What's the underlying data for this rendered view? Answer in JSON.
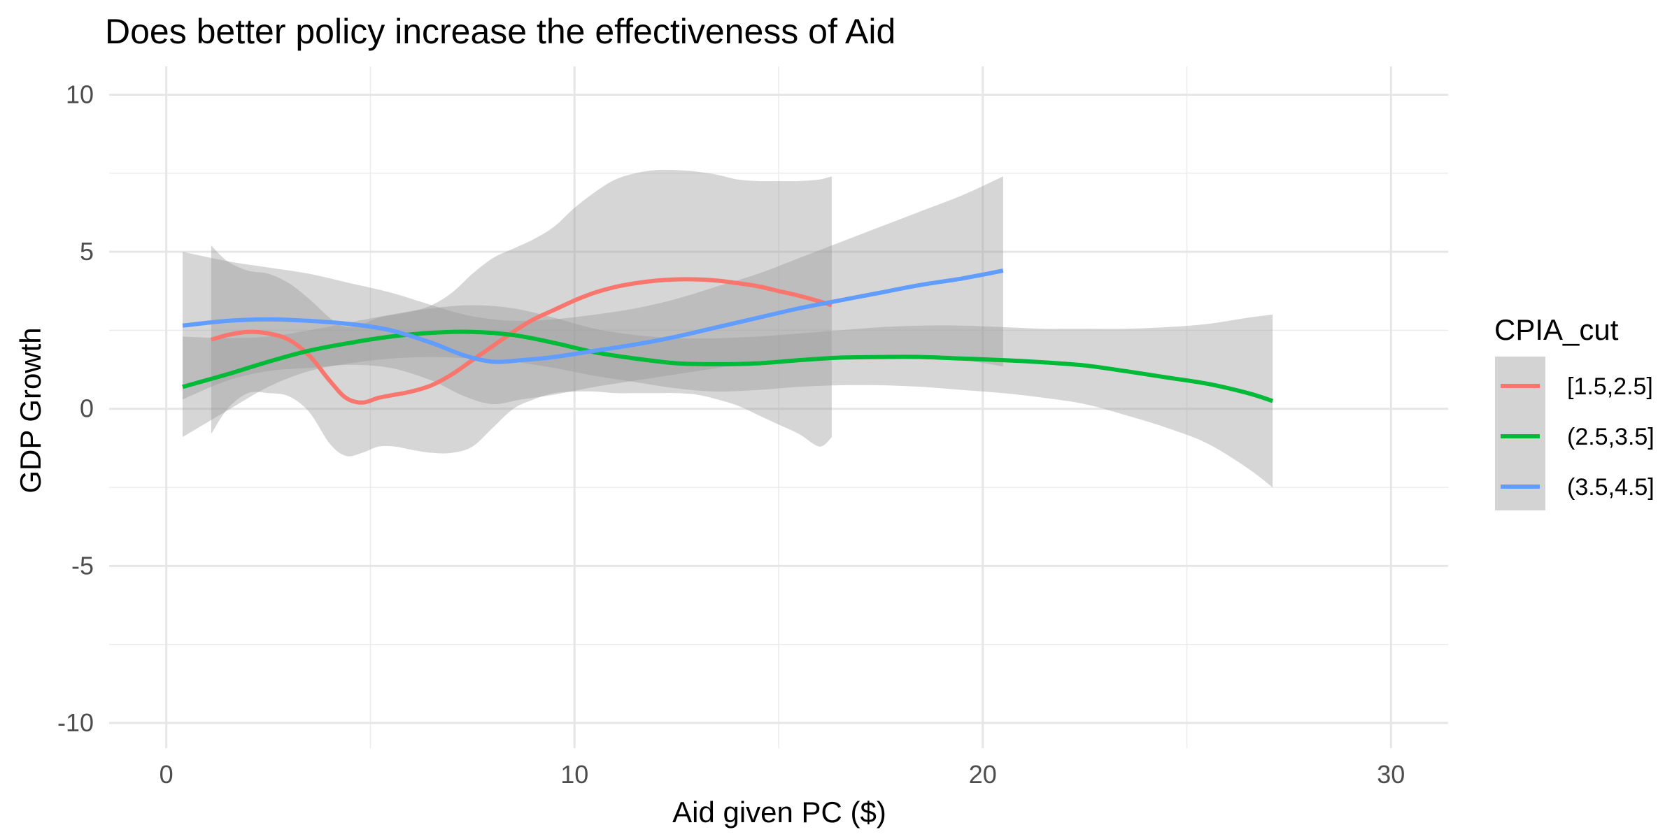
{
  "chart_data": {
    "type": "line",
    "title": "Does better policy increase the effectiveness of Aid",
    "xlabel": "Aid given PC ($)",
    "ylabel": "GDP Growth",
    "xlim": [
      -1.4,
      31.4
    ],
    "ylim": [
      -10.8,
      10.9
    ],
    "x_ticks": [
      0,
      10,
      20,
      30
    ],
    "x_tick_labels": [
      "0",
      "10",
      "20",
      "30"
    ],
    "y_ticks": [
      -10,
      -5,
      0,
      5,
      10
    ],
    "y_tick_labels": [
      "-10",
      "-5",
      "0",
      "5",
      "10"
    ],
    "grid": true,
    "legend": {
      "title": "CPIA_cut",
      "position": "right"
    },
    "series": [
      {
        "name": "[1.5,2.5]",
        "color": "#F8766D",
        "x": [
          1.1,
          1.5,
          2.0,
          2.5,
          3.0,
          3.5,
          4.0,
          4.4,
          4.8,
          5.2,
          5.6,
          6.0,
          6.5,
          7.0,
          7.5,
          8.0,
          8.5,
          9.0,
          9.5,
          10.0,
          10.5,
          11.0,
          11.5,
          12.0,
          12.5,
          13.0,
          13.5,
          14.0,
          14.5,
          15.0,
          15.5,
          16.0,
          16.3
        ],
        "y": [
          2.2,
          2.35,
          2.45,
          2.4,
          2.2,
          1.7,
          0.9,
          0.35,
          0.2,
          0.35,
          0.45,
          0.55,
          0.75,
          1.1,
          1.55,
          2.0,
          2.45,
          2.85,
          3.15,
          3.45,
          3.7,
          3.88,
          4.0,
          4.08,
          4.12,
          4.12,
          4.08,
          4.0,
          3.9,
          3.75,
          3.6,
          3.42,
          3.3
        ],
        "upper": [
          5.2,
          4.7,
          4.4,
          4.3,
          4.0,
          3.5,
          2.9,
          2.6,
          2.7,
          2.9,
          3.0,
          3.1,
          3.3,
          3.7,
          4.3,
          4.8,
          5.1,
          5.4,
          5.8,
          6.4,
          6.9,
          7.3,
          7.5,
          7.6,
          7.6,
          7.55,
          7.45,
          7.3,
          7.25,
          7.25,
          7.25,
          7.3,
          7.4
        ],
        "lower": [
          -0.8,
          0.0,
          0.5,
          0.5,
          0.4,
          -0.1,
          -1.1,
          -1.5,
          -1.4,
          -1.2,
          -1.2,
          -1.3,
          -1.4,
          -1.4,
          -1.2,
          -0.6,
          0.0,
          0.3,
          0.5,
          0.55,
          0.55,
          0.5,
          0.5,
          0.5,
          0.5,
          0.45,
          0.3,
          0.1,
          -0.2,
          -0.5,
          -0.8,
          -1.2,
          -0.9
        ]
      },
      {
        "name": "(2.5,3.5]",
        "color": "#00BA38",
        "x": [
          0.4,
          1.5,
          2.5,
          3.5,
          4.5,
          5.5,
          6.5,
          7.5,
          8.5,
          9.5,
          10.5,
          11.5,
          12.5,
          13.5,
          14.5,
          15.5,
          16.5,
          17.5,
          18.5,
          19.5,
          20.5,
          21.5,
          22.5,
          23.5,
          24.5,
          25.5,
          26.5,
          27.1
        ],
        "y": [
          0.7,
          1.1,
          1.5,
          1.85,
          2.1,
          2.3,
          2.42,
          2.45,
          2.35,
          2.1,
          1.8,
          1.6,
          1.45,
          1.42,
          1.45,
          1.55,
          1.63,
          1.65,
          1.65,
          1.6,
          1.55,
          1.48,
          1.38,
          1.2,
          1.0,
          0.8,
          0.5,
          0.25
        ],
        "upper": [
          2.3,
          2.25,
          2.3,
          2.5,
          2.75,
          3.0,
          3.2,
          3.3,
          3.2,
          2.9,
          2.55,
          2.35,
          2.25,
          2.25,
          2.3,
          2.4,
          2.5,
          2.6,
          2.65,
          2.65,
          2.6,
          2.55,
          2.55,
          2.55,
          2.6,
          2.7,
          2.9,
          3.0
        ],
        "lower": [
          -0.9,
          -0.05,
          0.7,
          1.2,
          1.45,
          1.6,
          1.65,
          1.6,
          1.5,
          1.3,
          1.05,
          0.85,
          0.65,
          0.55,
          0.6,
          0.7,
          0.75,
          0.75,
          0.7,
          0.6,
          0.5,
          0.35,
          0.15,
          -0.2,
          -0.6,
          -1.1,
          -1.9,
          -2.5
        ]
      },
      {
        "name": "(3.5,4.5]",
        "color": "#619CFF",
        "x": [
          0.4,
          1.5,
          2.5,
          3.5,
          4.5,
          5.5,
          6.5,
          7.3,
          8.0,
          8.7,
          9.5,
          10.5,
          11.5,
          12.5,
          13.5,
          14.5,
          15.5,
          16.5,
          17.5,
          18.5,
          19.5,
          20.5
        ],
        "y": [
          2.65,
          2.8,
          2.85,
          2.8,
          2.7,
          2.5,
          2.1,
          1.7,
          1.5,
          1.55,
          1.65,
          1.85,
          2.05,
          2.3,
          2.6,
          2.9,
          3.2,
          3.45,
          3.7,
          3.95,
          4.15,
          4.4
        ],
        "upper": [
          5.0,
          4.7,
          4.5,
          4.3,
          4.0,
          3.7,
          3.3,
          3.0,
          2.85,
          2.8,
          2.85,
          3.0,
          3.2,
          3.5,
          3.9,
          4.3,
          4.8,
          5.3,
          5.8,
          6.3,
          6.8,
          7.4
        ],
        "lower": [
          0.3,
          0.9,
          1.2,
          1.3,
          1.4,
          1.3,
          0.9,
          0.4,
          0.15,
          0.3,
          0.45,
          0.7,
          0.9,
          1.1,
          1.3,
          1.5,
          1.6,
          1.6,
          1.6,
          1.6,
          1.55,
          1.35
        ]
      }
    ]
  }
}
